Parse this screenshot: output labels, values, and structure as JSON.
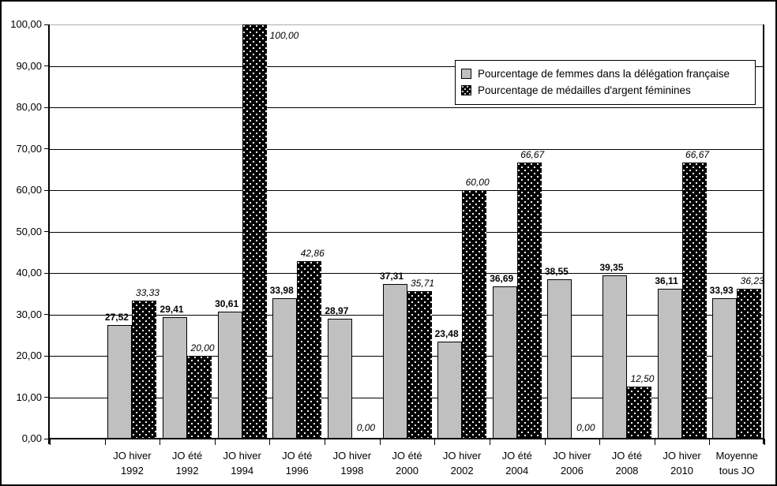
{
  "chart_data": {
    "type": "bar",
    "title": "",
    "categories": [
      {
        "line1": "JO hiver",
        "line2": "1992"
      },
      {
        "line1": "JO été",
        "line2": "1992"
      },
      {
        "line1": "JO hiver",
        "line2": "1994"
      },
      {
        "line1": "JO été",
        "line2": "1996"
      },
      {
        "line1": "JO hiver",
        "line2": "1998"
      },
      {
        "line1": "JO été",
        "line2": "2000"
      },
      {
        "line1": "JO hiver",
        "line2": "2002"
      },
      {
        "line1": "JO été",
        "line2": "2004"
      },
      {
        "line1": "JO hiver",
        "line2": "2006"
      },
      {
        "line1": "JO été",
        "line2": "2008"
      },
      {
        "line1": "JO hiver",
        "line2": "2010"
      },
      {
        "line1": "Moyenne",
        "line2": "tous JO"
      }
    ],
    "series": [
      {
        "name": "Pourcentage de femmes dans la délégation française",
        "values": [
          27.52,
          29.41,
          30.61,
          33.98,
          28.97,
          37.31,
          23.48,
          36.69,
          38.55,
          39.35,
          36.11,
          33.93
        ],
        "labels": [
          "27,52",
          "29,41",
          "30,61",
          "33,98",
          "28,97",
          "37,31",
          "23,48",
          "36,69",
          "38,55",
          "39,35",
          "36,11",
          "33,93"
        ],
        "color": "#c0c0c0",
        "pattern": "solid",
        "label_style": "bold"
      },
      {
        "name": "Pourcentage de médailles d'argent féminines",
        "values": [
          33.33,
          20.0,
          100.0,
          42.86,
          0.0,
          35.71,
          60.0,
          66.67,
          0.0,
          12.5,
          66.67,
          36.23
        ],
        "labels": [
          "33,33",
          "20,00",
          "100,00",
          "42,86",
          "0,00",
          "35,71",
          "60,00",
          "66,67",
          "0,00",
          "12,50",
          "66,67",
          "36,23"
        ],
        "color": "#000000",
        "pattern": "white-dots",
        "label_style": "italic"
      }
    ],
    "y_axis": {
      "min": 0,
      "max": 100,
      "step": 10,
      "tick_labels": [
        "0,00",
        "10,00",
        "20,00",
        "30,00",
        "40,00",
        "50,00",
        "60,00",
        "70,00",
        "80,00",
        "90,00",
        "100,00"
      ]
    },
    "grid": true,
    "legend_position": "top-right",
    "leading_empty_slot": true
  },
  "colors": {
    "bar_series1": "#c0c0c0",
    "bar_series2": "#000000",
    "background": "#ffffff",
    "gridline": "#000000",
    "top_gridline": "#b0b0b0",
    "border": "#000000"
  }
}
